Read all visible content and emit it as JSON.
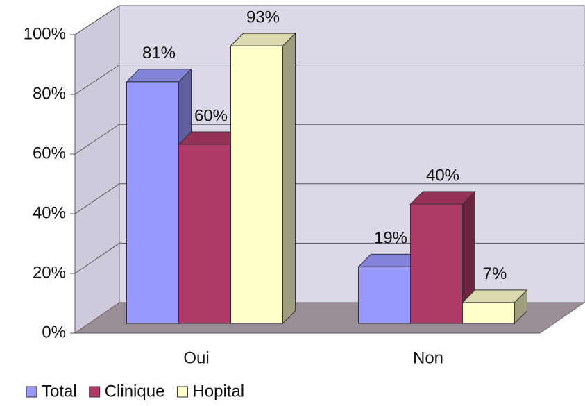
{
  "chart_data": {
    "type": "bar3d",
    "categories": [
      "Oui",
      "Non"
    ],
    "series": [
      {
        "name": "Total",
        "color": "#9999ff",
        "values": [
          81,
          19
        ],
        "value_labels": [
          "81%",
          "19%"
        ]
      },
      {
        "name": "Clinique",
        "color": "#b03a68",
        "values": [
          60,
          40
        ],
        "value_labels": [
          "60%",
          "40%"
        ]
      },
      {
        "name": "Hopital",
        "color": "#ffffcc",
        "values": [
          93,
          7
        ],
        "value_labels": [
          "93%",
          "7%"
        ]
      }
    ],
    "ylim": [
      0,
      100
    ],
    "yticks": [
      {
        "value": 0,
        "label": "0%"
      },
      {
        "value": 20,
        "label": "20%"
      },
      {
        "value": 40,
        "label": "40%"
      },
      {
        "value": 60,
        "label": "60%"
      },
      {
        "value": 80,
        "label": "80%"
      },
      {
        "value": 100,
        "label": "100%"
      }
    ],
    "grid": true,
    "legend": "bottom"
  }
}
